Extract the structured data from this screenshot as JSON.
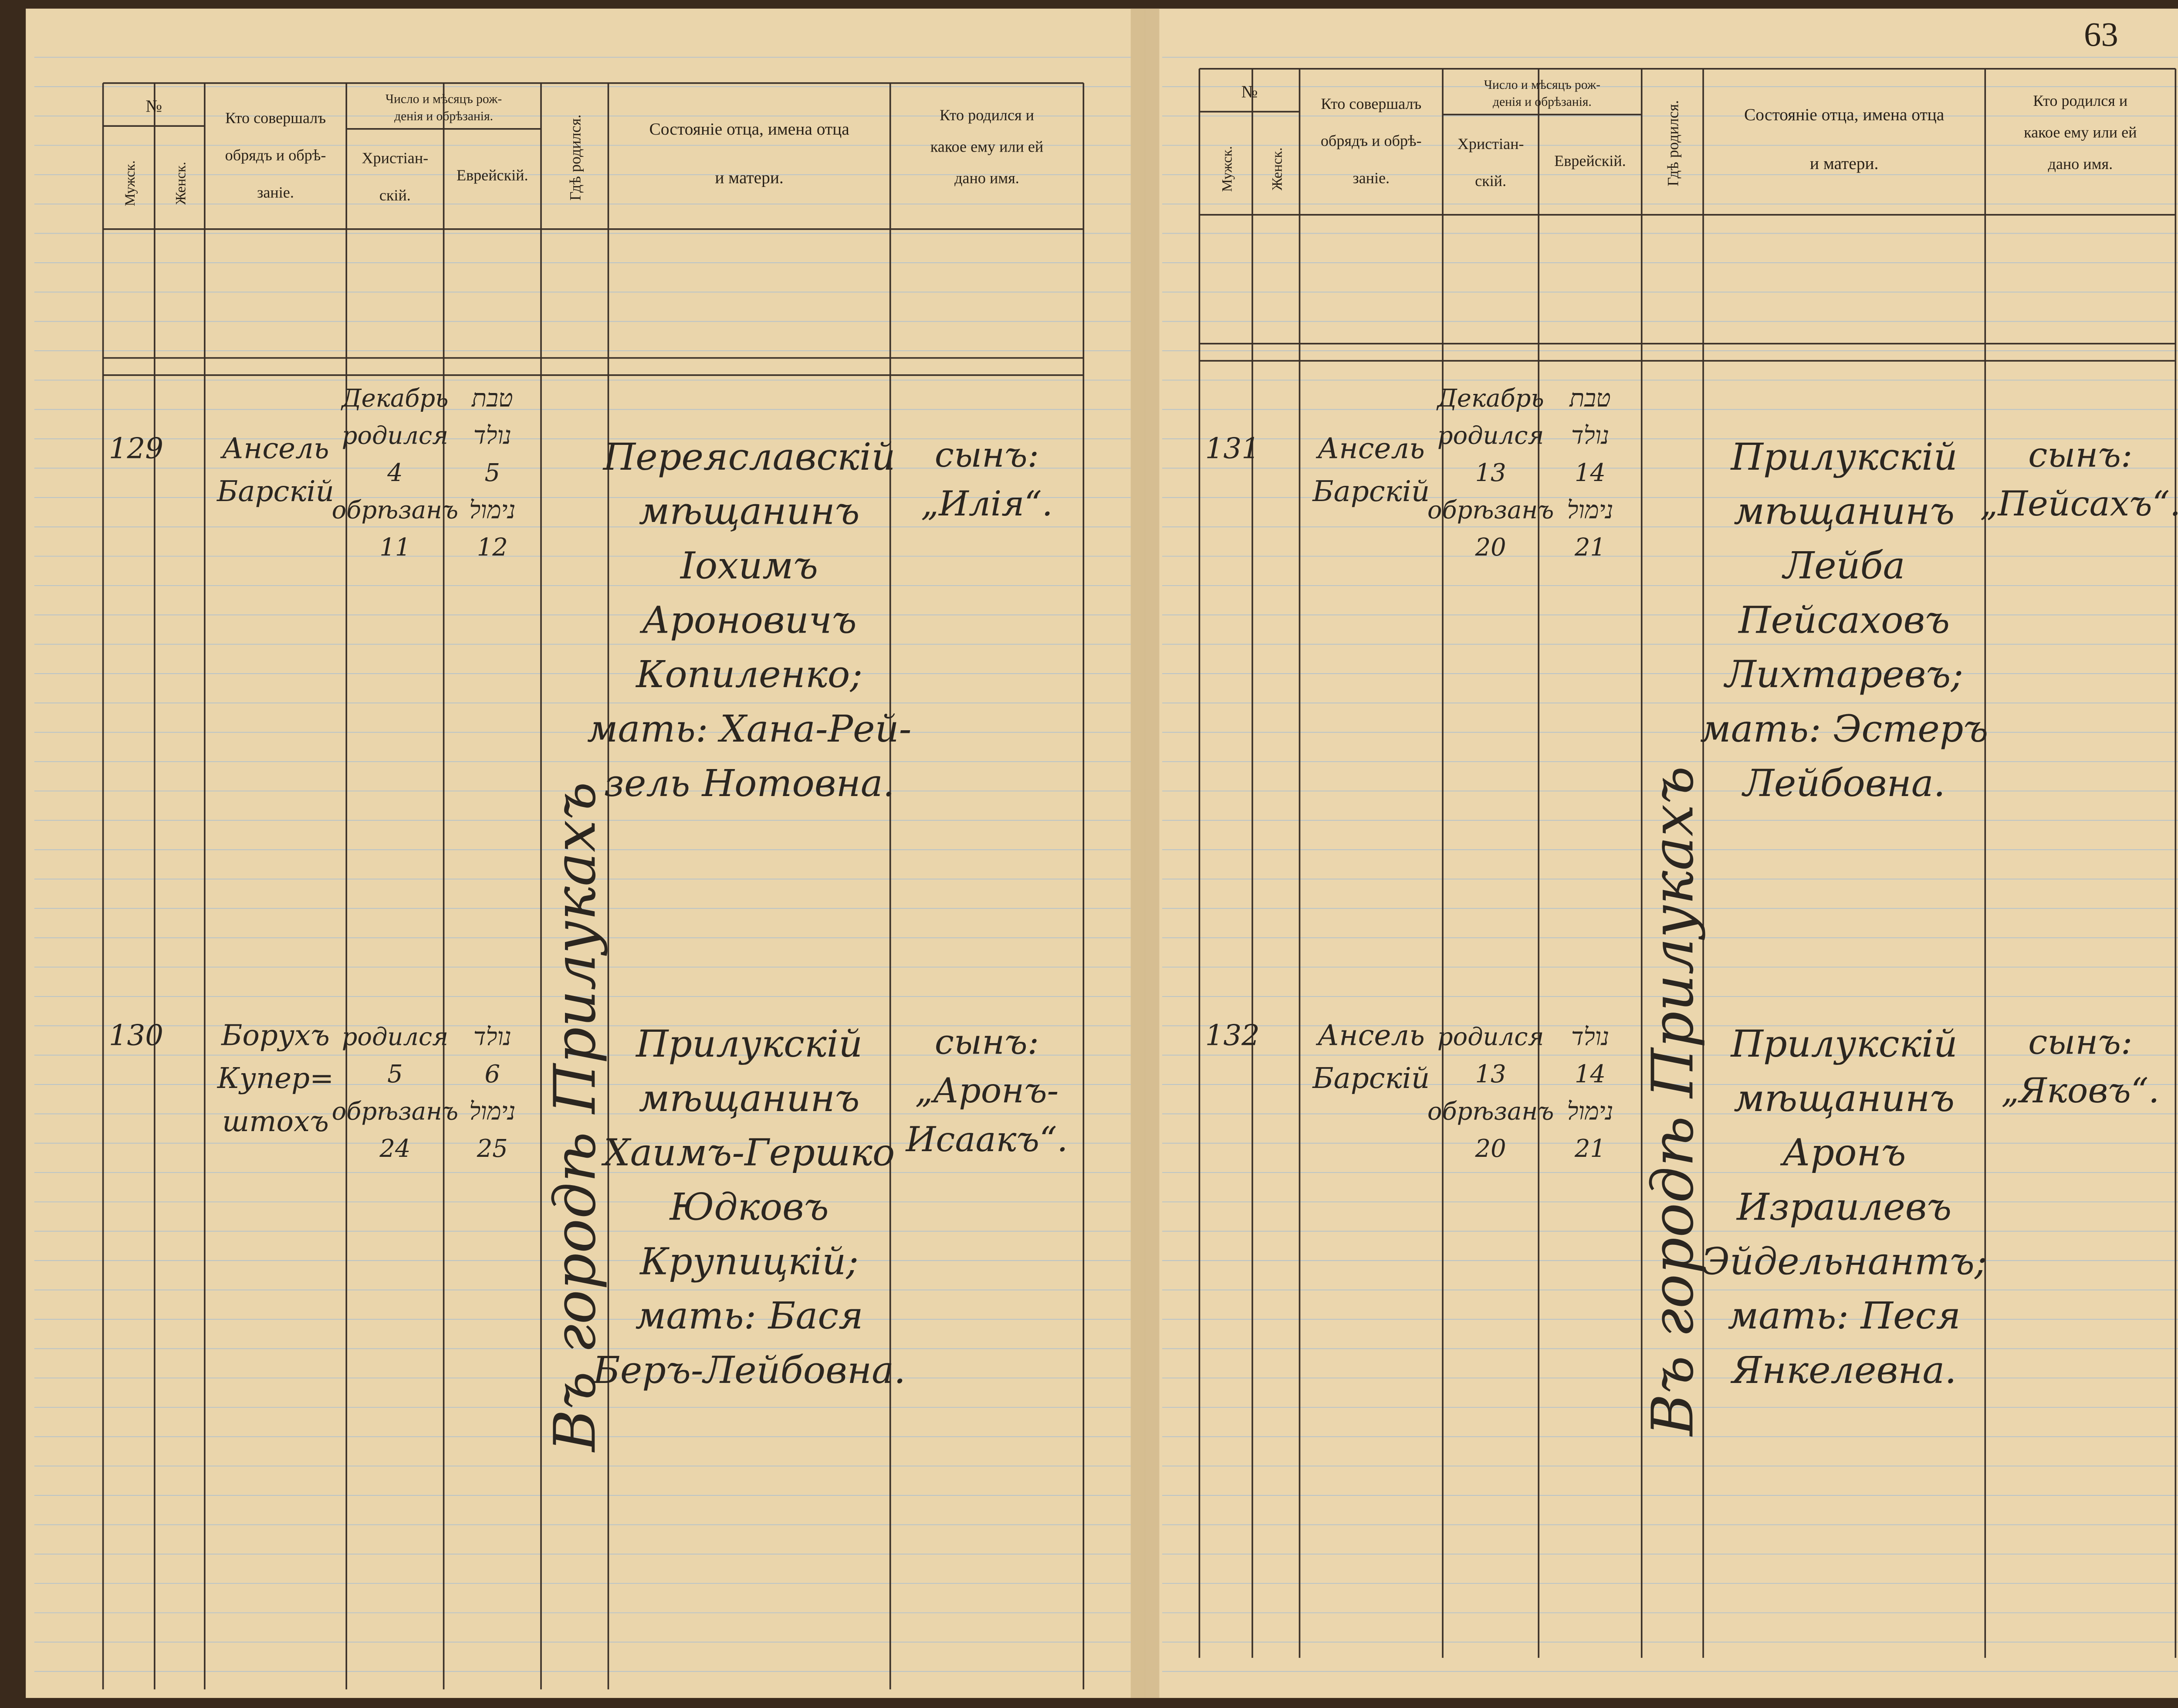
{
  "page_number": "63",
  "header": {
    "no": "№",
    "male": "Мужск.",
    "female": "Женск.",
    "performer": [
      "Кто совершалъ",
      "обрядъ и обрѣ-",
      "заніе."
    ],
    "date": [
      "Число и мѣсяцъ рож-",
      "денія и обрѣзанія."
    ],
    "christian": [
      "Христіан-",
      "скій."
    ],
    "jewish": "Еврейскій.",
    "place": "Гдѣ родился.",
    "parents": [
      "Состояніе отца, имена отца",
      "и матери."
    ],
    "child": [
      "Кто родился и",
      "какое ему или ей",
      "дано имя."
    ]
  },
  "pages": [
    {
      "place": "Въ городѣ Прилукахъ",
      "entries": [
        {
          "number": "129",
          "performer": [
            "Ансель",
            "Барскій"
          ],
          "christian": [
            "Декабрь",
            "родился",
            "4",
            "обрѣзанъ",
            "11"
          ],
          "jewish": [
            "טבת",
            "נולד",
            "5",
            "נימול",
            "12"
          ],
          "parents": [
            "Переяславскій",
            "мѣщанинъ",
            "Іохимъ",
            "Ароновичъ",
            "Копиленко;",
            "мать: Хана-Рей-",
            "зель Нотовна."
          ],
          "child": [
            "сынъ:",
            "„Илія“."
          ]
        },
        {
          "number": "130",
          "performer": [
            "Борухъ",
            "Купер=",
            "штохъ"
          ],
          "christian": [
            "родился",
            "5",
            "обрѣзанъ",
            "24"
          ],
          "jewish": [
            "נולד",
            "6",
            "נימול",
            "25"
          ],
          "parents": [
            "Прилукскій",
            "мѣщанинъ",
            "Хаимъ-Гершко",
            "Юдковъ",
            "Крупицкій;",
            "мать: Бася",
            "Беръ-Лейбовна."
          ],
          "child": [
            "сынъ:",
            "„Аронъ-",
            "Исаакъ“."
          ]
        }
      ]
    },
    {
      "place": "Въ городѣ Прилукахъ",
      "entries": [
        {
          "number": "131",
          "performer": [
            "Ансель",
            "Барскій"
          ],
          "christian": [
            "Декабрь",
            "родился",
            "13",
            "обрѣзанъ",
            "20"
          ],
          "jewish": [
            "טבת",
            "נולד",
            "14",
            "נימול",
            "21"
          ],
          "parents": [
            "Прилукскій",
            "мѣщанинъ",
            "Лейба",
            "Пейсаховъ",
            "Лихтаревъ;",
            "мать: Эстеръ",
            "Лейбовна."
          ],
          "child": [
            "сынъ:",
            "„Пейсахъ“."
          ]
        },
        {
          "number": "132",
          "performer": [
            "Ансель",
            "Барскій"
          ],
          "christian": [
            "родился",
            "13",
            "обрѣзанъ",
            "20"
          ],
          "jewish": [
            "נולד",
            "14",
            "נימול",
            "21"
          ],
          "parents": [
            "Прилукскій",
            "мѣщанинъ",
            "Аронъ",
            "Израилевъ",
            "Эйдельнантъ;",
            "мать: Песя",
            "Янкелевна."
          ],
          "child": [
            "сынъ:",
            "„Яковъ“."
          ]
        }
      ]
    }
  ]
}
